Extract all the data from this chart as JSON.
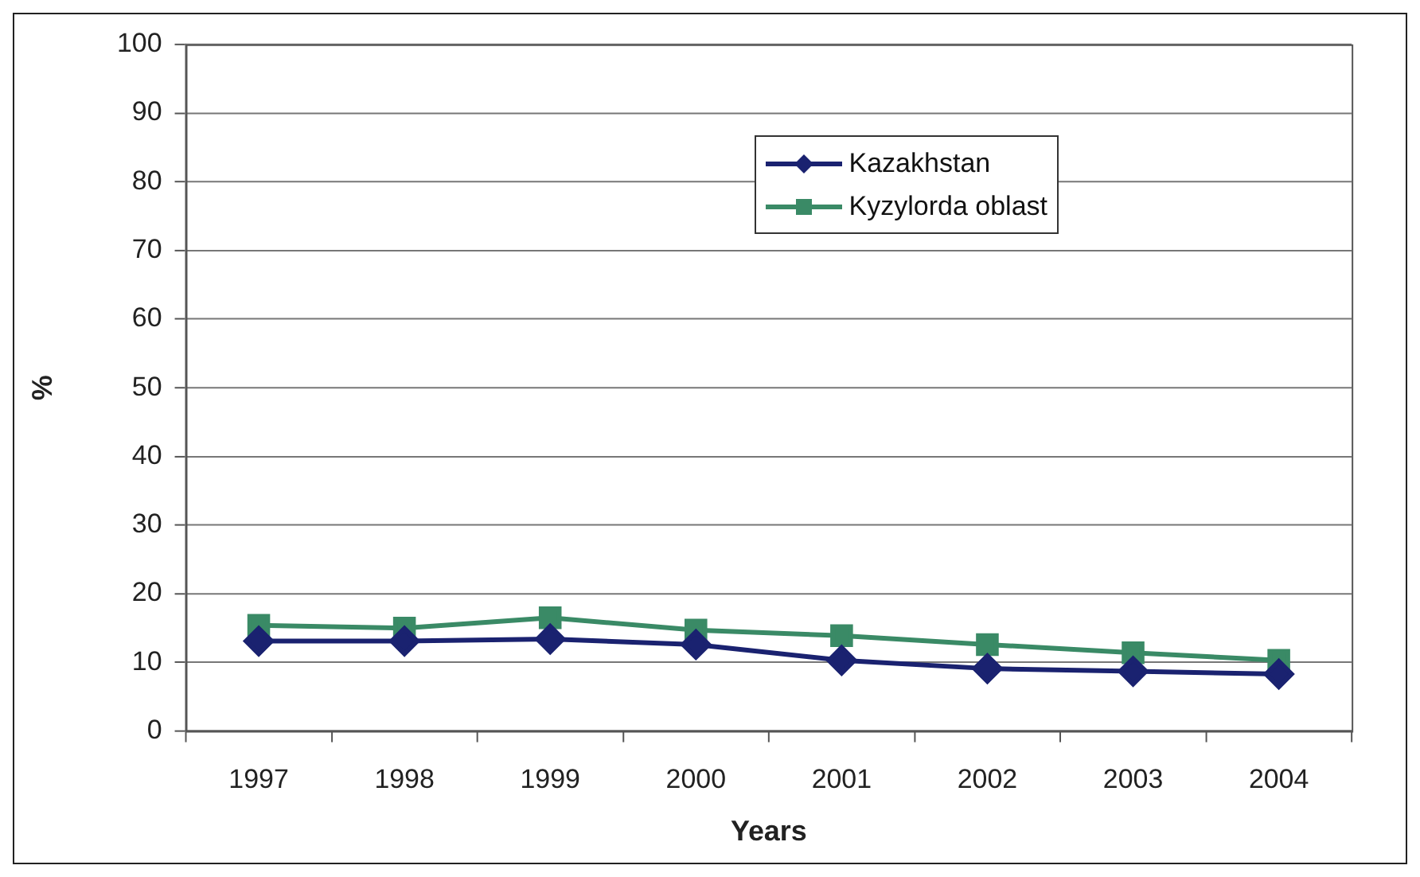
{
  "chart_data": {
    "type": "line",
    "xlabel": "Years",
    "ylabel": "%",
    "categories": [
      "1997",
      "1998",
      "1999",
      "2000",
      "2001",
      "2002",
      "2003",
      "2004"
    ],
    "series": [
      {
        "name": "Kazakhstan",
        "color": "#1a2270",
        "marker": "diamond",
        "values": [
          13.1,
          13.1,
          13.4,
          12.6,
          10.3,
          9.1,
          8.7,
          8.3
        ]
      },
      {
        "name": "Kyzylorda oblast",
        "color": "#3a8a66",
        "marker": "square",
        "values": [
          15.4,
          15.0,
          16.5,
          14.7,
          13.9,
          12.6,
          11.4,
          10.3
        ]
      }
    ],
    "ylim": [
      0,
      100
    ],
    "yticks": [
      0,
      10,
      20,
      30,
      40,
      50,
      60,
      70,
      80,
      90,
      100
    ],
    "grid": "y",
    "legend": "top right"
  }
}
